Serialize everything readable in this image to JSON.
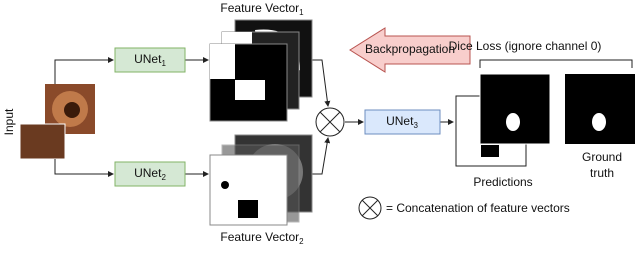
{
  "input_label": "Input",
  "unet1": {
    "text": "UNet",
    "subscript": "1"
  },
  "unet2": {
    "text": "UNet",
    "subscript": "2"
  },
  "unet3": {
    "text": "UNet",
    "subscript": "3"
  },
  "feature_vector1": {
    "text": "Feature Vector",
    "subscript": "1"
  },
  "feature_vector2": {
    "text": "Feature Vector",
    "subscript": "2"
  },
  "backpropagation": "Backpropagation",
  "dice_loss": "Dice Loss (ignore channel 0)",
  "predictions": "Predictions",
  "ground_truth": [
    "Ground",
    "truth"
  ],
  "legend": "= Concatenation of feature vectors"
}
